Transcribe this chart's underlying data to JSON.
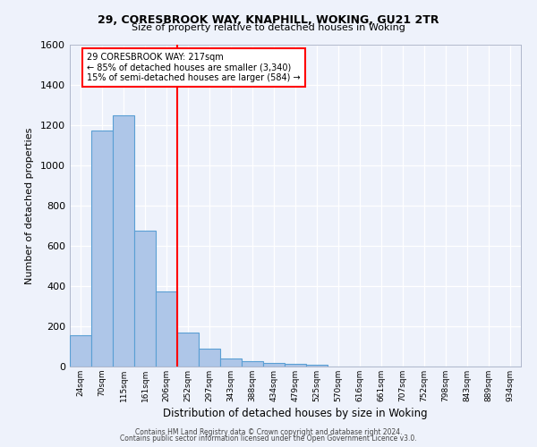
{
  "title1": "29, CORESBROOK WAY, KNAPHILL, WOKING, GU21 2TR",
  "title2": "Size of property relative to detached houses in Woking",
  "xlabel": "Distribution of detached houses by size in Woking",
  "ylabel": "Number of detached properties",
  "footnote1": "Contains HM Land Registry data © Crown copyright and database right 2024.",
  "footnote2": "Contains public sector information licensed under the Open Government Licence v3.0.",
  "categories": [
    "24sqm",
    "70sqm",
    "115sqm",
    "161sqm",
    "206sqm",
    "252sqm",
    "297sqm",
    "343sqm",
    "388sqm",
    "434sqm",
    "479sqm",
    "525sqm",
    "570sqm",
    "616sqm",
    "661sqm",
    "707sqm",
    "752sqm",
    "798sqm",
    "843sqm",
    "889sqm",
    "934sqm"
  ],
  "values": [
    155,
    1175,
    1250,
    675,
    375,
    170,
    88,
    38,
    28,
    18,
    14,
    10,
    0,
    0,
    0,
    0,
    0,
    0,
    0,
    0,
    0
  ],
  "bar_color": "#aec6e8",
  "bar_edge_color": "#5a9fd4",
  "red_line_x": 4.5,
  "annotation_text": "29 CORESBROOK WAY: 217sqm\n← 85% of detached houses are smaller (3,340)\n15% of semi-detached houses are larger (584) →",
  "annotation_box_color": "white",
  "annotation_box_edge_color": "red",
  "red_line_color": "red",
  "background_color": "#eef2fb",
  "grid_color": "white",
  "ylim": [
    0,
    1600
  ],
  "yticks": [
    0,
    200,
    400,
    600,
    800,
    1000,
    1200,
    1400,
    1600
  ]
}
